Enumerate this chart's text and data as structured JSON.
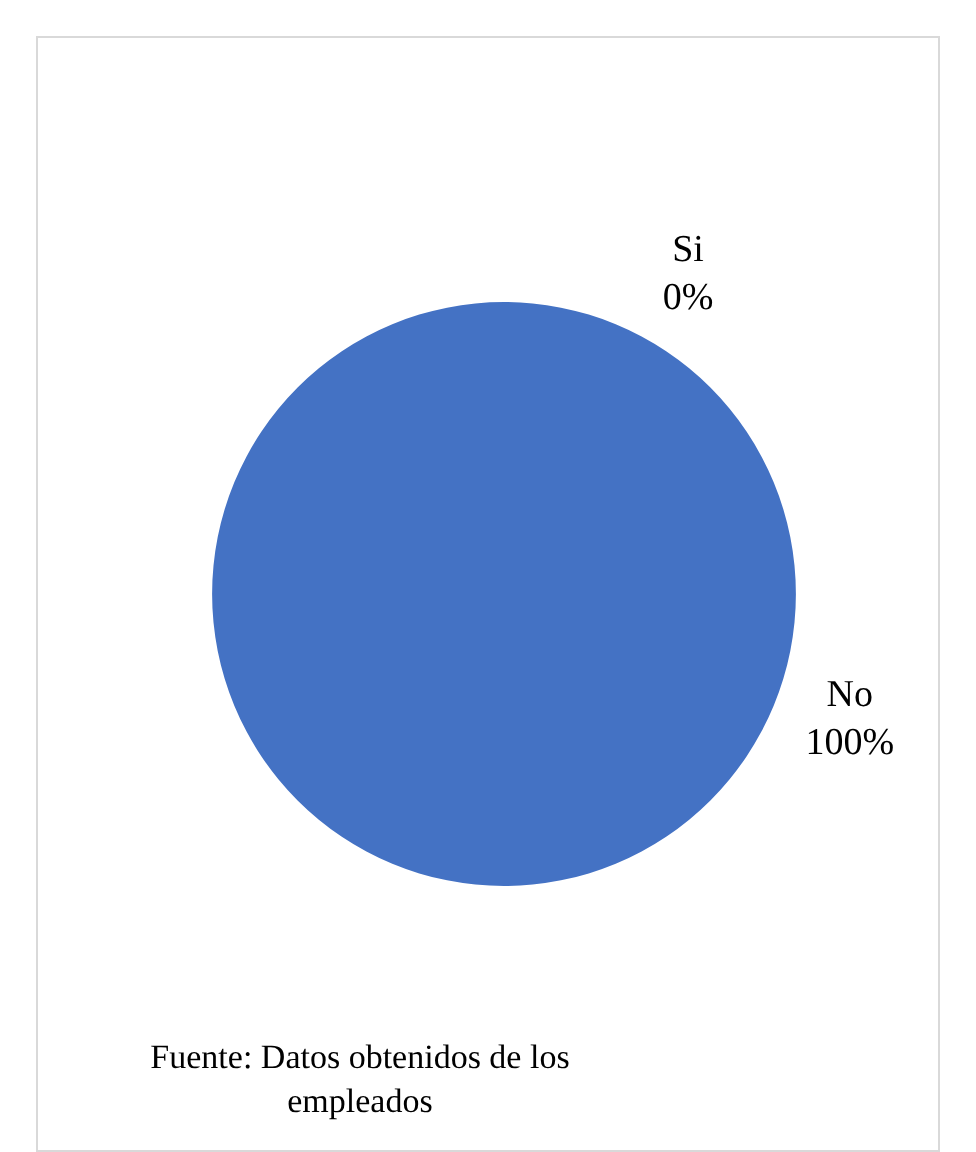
{
  "chart_data": {
    "type": "pie",
    "categories": [
      "Si",
      "No"
    ],
    "values": [
      0,
      100
    ],
    "colors": [
      "#ed7d31",
      "#4472c4"
    ],
    "value_labels": [
      "0%",
      "100%"
    ],
    "legend": false,
    "annotations": [
      "Fuente: Datos obtenidos de los empleados"
    ]
  }
}
